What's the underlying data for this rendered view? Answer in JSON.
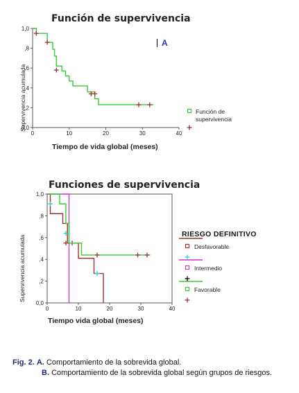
{
  "chart_data": [
    {
      "type": "line",
      "panel_label": "A",
      "title": "Función de supervivencia",
      "xlabel": "Tiempo de vida global (meses)",
      "ylabel": "Supervivencia acumulada",
      "xlim": [
        0,
        40
      ],
      "ylim": [
        0,
        1
      ],
      "x_ticks": [
        "0",
        "10",
        "20",
        "30",
        "40"
      ],
      "y_ticks": [
        "0,0",
        ",2",
        ",4",
        ",6",
        ",8",
        "1,0"
      ],
      "legend_position": "right",
      "legend": [
        {
          "label": "Función de supervivencia",
          "marker": "square",
          "color": "#33cc33"
        },
        {
          "label": "",
          "marker": "plus",
          "color": "#993333"
        }
      ],
      "series": [
        {
          "color": "#33cc33",
          "steps": [
            [
              0,
              1.0
            ],
            [
              1,
              0.95
            ],
            [
              4,
              0.86
            ],
            [
              5.5,
              0.79
            ],
            [
              6,
              0.72
            ],
            [
              6.5,
              0.62
            ],
            [
              8,
              0.57
            ],
            [
              9,
              0.52
            ],
            [
              10,
              0.47
            ],
            [
              11,
              0.42
            ],
            [
              15,
              0.36
            ],
            [
              17,
              0.29
            ],
            [
              18,
              0.23
            ],
            [
              33,
              0.23
            ]
          ],
          "censored": [
            [
              1,
              0.95
            ],
            [
              4,
              0.86
            ],
            [
              6.5,
              0.58
            ],
            [
              16,
              0.34
            ],
            [
              17,
              0.34
            ],
            [
              29,
              0.23
            ],
            [
              32,
              0.23
            ]
          ]
        }
      ]
    },
    {
      "type": "line",
      "title": "Funciones de supervivencia",
      "xlabel": "Tiempo vida global (meses)",
      "ylabel": "Supervivencia acumulada",
      "xlim": [
        0,
        40
      ],
      "ylim": [
        0,
        1
      ],
      "x_ticks": [
        "0",
        "10",
        "20",
        "30",
        "40"
      ],
      "y_ticks": [
        "0,0",
        ",2",
        ",4",
        ",6",
        ",8",
        "1,0"
      ],
      "legend_position": "right",
      "legend_title": "RIESGO DEFINITIVO",
      "legend": [
        {
          "label": "Desfavorable",
          "marker": "square",
          "color": "#993333"
        },
        {
          "label": "",
          "marker": "plus",
          "color": "#33cccc"
        },
        {
          "label": "Intermedio",
          "marker": "square",
          "color": "#cc33cc"
        },
        {
          "label": "",
          "marker": "plus",
          "color": "#000000"
        },
        {
          "label": "Favorable",
          "marker": "square",
          "color": "#33cc33"
        },
        {
          "label": "",
          "marker": "plus",
          "color": "#993333"
        }
      ],
      "series": [
        {
          "name": "Desfavorable",
          "color": "#993333",
          "steps": [
            [
              0,
              1.0
            ],
            [
              1,
              0.82
            ],
            [
              5,
              0.73
            ],
            [
              6.5,
              0.55
            ],
            [
              10,
              0.41
            ],
            [
              15,
              0.27
            ],
            [
              18,
              0.0
            ]
          ],
          "censored": [
            [
              6,
              0.55
            ],
            [
              8,
              0.55
            ]
          ]
        },
        {
          "name": "Intermedio",
          "color": "#cc33cc",
          "steps": [
            [
              0,
              1.0
            ],
            [
              7,
              1.0
            ],
            [
              7,
              0.0
            ]
          ],
          "censored": []
        },
        {
          "name": "Favorable",
          "color": "#33cc33",
          "steps": [
            [
              0,
              1.0
            ],
            [
              4,
              0.91
            ],
            [
              6,
              0.73
            ],
            [
              7,
              0.55
            ],
            [
              10,
              0.55
            ],
            [
              11,
              0.44
            ],
            [
              33,
              0.44
            ]
          ],
          "censored": [
            [
              16,
              0.44
            ],
            [
              29,
              0.44
            ],
            [
              32,
              0.44
            ]
          ]
        },
        {
          "name": "",
          "color": "#33cccc",
          "steps": [],
          "censored": [
            [
              1,
              0.91
            ],
            [
              6,
              0.64
            ],
            [
              16,
              0.27
            ]
          ]
        }
      ]
    }
  ],
  "caption": {
    "lead": "Fig. 2.",
    "a_marker": "A.",
    "a_text": "Comportamiento de la sobrevida global.",
    "b_marker": "B.",
    "b_text": "Comportamiento de la sobrevida global según grupos de riesgos."
  }
}
